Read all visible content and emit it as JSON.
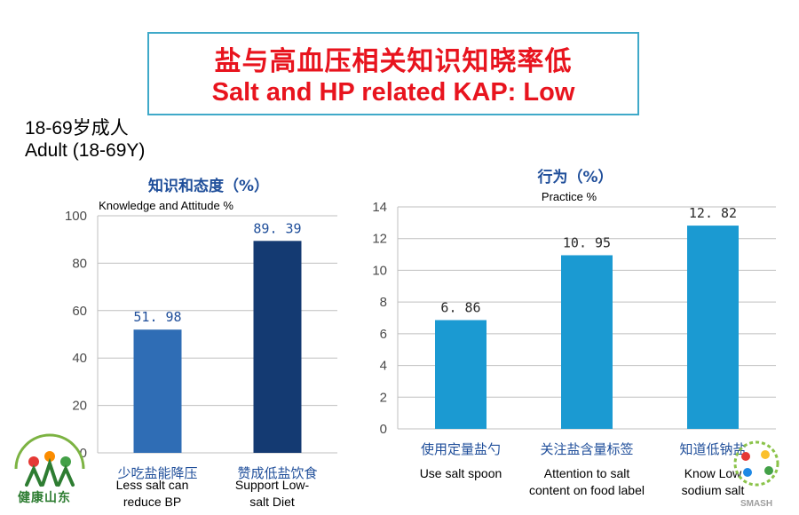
{
  "title": {
    "cn": "盐与高血压相关知识知晓率低",
    "en": "Salt and HP related KAP: Low"
  },
  "population": {
    "cn": "18-69岁成人",
    "en": "Adult (18-69Y)"
  },
  "colors": {
    "title_red": "#e8141e",
    "title_border": "#3fa9c9",
    "chart_title_blue": "#1f4e9a",
    "bar_light_blue": "#2f6db5",
    "bar_dark_blue": "#143a72",
    "bar_cyan": "#1b9ad2",
    "grid": "#bfbfbf"
  },
  "logos": {
    "left_text": "健康山东",
    "right_text": "SMASH"
  },
  "chart_data": [
    {
      "type": "bar",
      "title_cn": "知识和态度（%）",
      "title_en": "Knowledge and Attitude %",
      "categories_cn": [
        "少吃盐能降压",
        "赞成低盐饮食"
      ],
      "categories_en": [
        [
          "Less salt can",
          "reduce BP"
        ],
        [
          "Support Low-",
          "salt Diet"
        ]
      ],
      "values": [
        51.98,
        89.39
      ],
      "value_labels": [
        "51. 98",
        "89. 39"
      ],
      "ylim": [
        0,
        100
      ],
      "ticks": [
        0,
        20,
        40,
        60,
        80,
        100
      ],
      "grid": true,
      "bar_colors": [
        "#2f6db5",
        "#143a72"
      ]
    },
    {
      "type": "bar",
      "title_cn": "行为（%）",
      "title_en": "Practice %",
      "categories_cn": [
        "使用定量盐勺",
        "关注盐含量标签",
        "知道低钠盐"
      ],
      "categories_en": [
        [
          "Use salt spoon"
        ],
        [
          "Attention to salt",
          "content on food label"
        ],
        [
          "Know Low",
          "sodium salt"
        ]
      ],
      "values": [
        6.86,
        10.95,
        12.82
      ],
      "value_labels": [
        "6. 86",
        "10. 95",
        "12. 82"
      ],
      "ylim": [
        0,
        14
      ],
      "ticks": [
        0,
        2,
        4,
        6,
        8,
        10,
        12,
        14
      ],
      "grid": true,
      "bar_colors": [
        "#1b9ad2",
        "#1b9ad2",
        "#1b9ad2"
      ]
    }
  ]
}
